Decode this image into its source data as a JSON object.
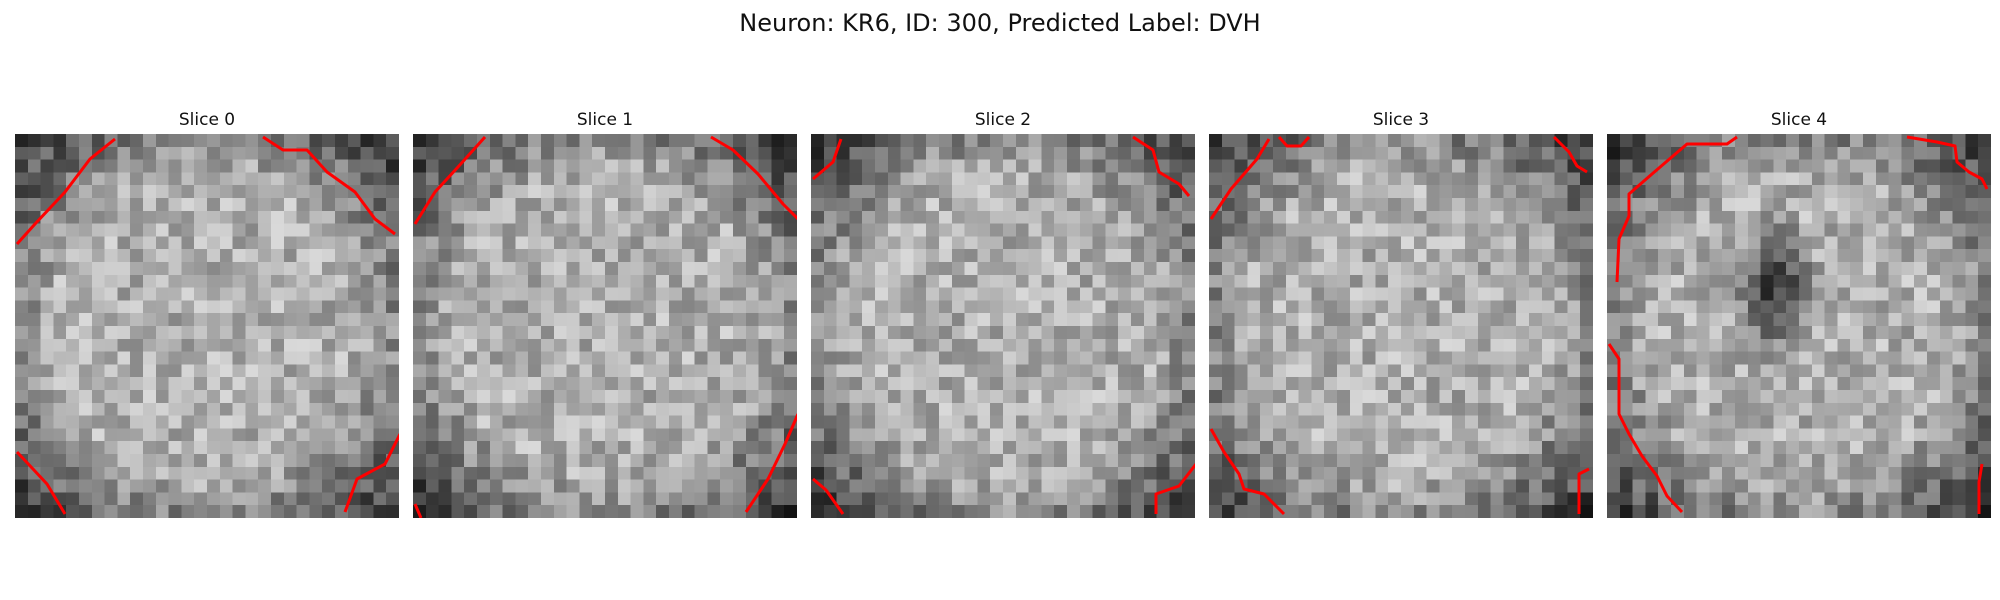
{
  "figure": {
    "title": "Neuron: KR6, ID: 300, Predicted Label: DVH",
    "contour_color": "#ff0000",
    "colormap": "grayscale",
    "slices": [
      {
        "label": "Slice 0",
        "seed": 11,
        "dark_blob": false
      },
      {
        "label": "Slice 1",
        "seed": 23,
        "dark_blob": false
      },
      {
        "label": "Slice 2",
        "seed": 37,
        "dark_blob": false
      },
      {
        "label": "Slice 3",
        "seed": 41,
        "dark_blob": false
      },
      {
        "label": "Slice 4",
        "seed": 59,
        "dark_blob": true
      }
    ]
  }
}
